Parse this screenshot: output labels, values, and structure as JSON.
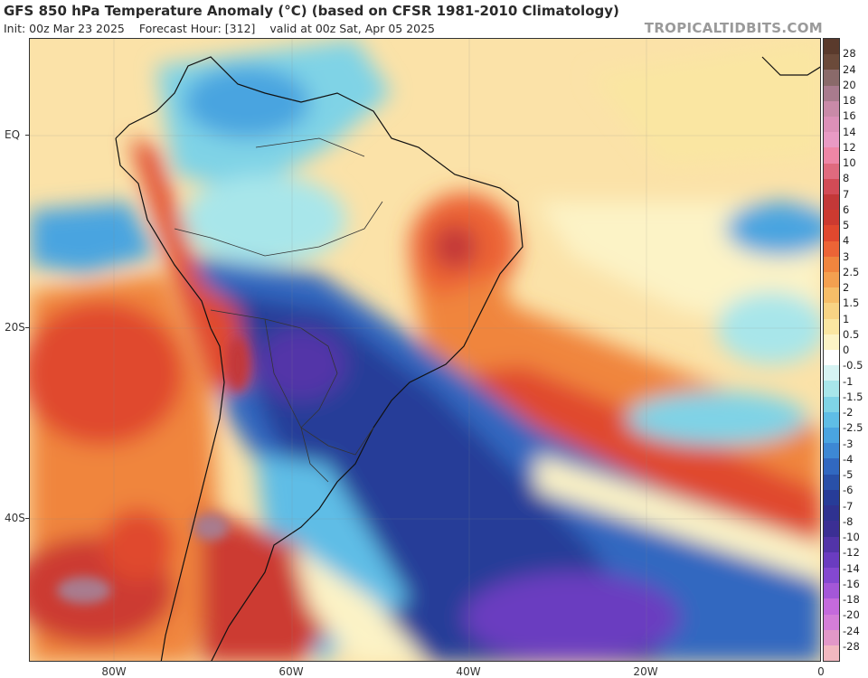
{
  "header": {
    "title": "GFS 850 hPa Temperature Anomaly (°C) (based on CFSR 1981-2010 Climatology)",
    "init": "Init: 00z Mar 23 2025",
    "forecast_hour": "Forecast Hour: [312]",
    "valid": "valid at 00z Sat, Apr 05 2025"
  },
  "watermark": "TROPICALTIDBITS.COM",
  "axes": {
    "lat_labels": [
      "EQ",
      "20S",
      "40S"
    ],
    "lon_labels": [
      "80W",
      "60W",
      "40W",
      "20W",
      "0"
    ]
  },
  "colorbar": {
    "labels": [
      "28",
      "24",
      "20",
      "18",
      "16",
      "14",
      "12",
      "10",
      "8",
      "7",
      "6",
      "5",
      "4",
      "3",
      "2.5",
      "2",
      "1.5",
      "1",
      "0.5",
      "0",
      "-0.5",
      "-1",
      "-1.5",
      "-2",
      "-2.5",
      "-3",
      "-4",
      "-5",
      "-6",
      "-7",
      "-8",
      "-10",
      "-12",
      "-14",
      "-16",
      "-18",
      "-20",
      "-24",
      "-28"
    ],
    "colors": [
      "#6b4a3a",
      "#8a6a6a",
      "#a97b8e",
      "#c98aa8",
      "#dc90b8",
      "#e89ac4",
      "#ee86a6",
      "#e06a7e",
      "#d24b56",
      "#c33838",
      "#cc3a30",
      "#e0482e",
      "#ec6436",
      "#f0853e",
      "#f3a050",
      "#f6bd68",
      "#f8d384",
      "#fae6a2",
      "#fcf3c6",
      "#ffffff",
      "#d6f3f3",
      "#a8e6ea",
      "#7fd3e6",
      "#5fbde6",
      "#4aa4e0",
      "#3d88d4",
      "#3168c0",
      "#2950a8",
      "#273c98",
      "#2f3290",
      "#3b2f94",
      "#5234a8",
      "#6a3cc0",
      "#8448d0",
      "#a457d8",
      "#c46adc",
      "#d47ed8",
      "#e298c8",
      "#f2b8c0"
    ]
  }
}
